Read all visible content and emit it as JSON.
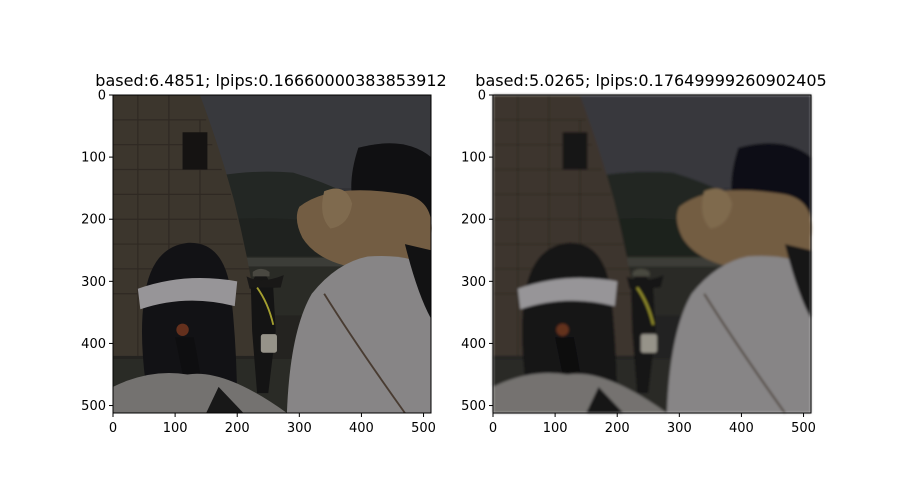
{
  "chart_data": [
    {
      "type": "image",
      "title": "based:6.4851; lpips:0.16660000383853912",
      "xlim": [
        0,
        512
      ],
      "ylim": [
        512,
        0
      ],
      "xticks": [
        0,
        100,
        200,
        300,
        400,
        500
      ],
      "yticks": [
        0,
        100,
        200,
        300,
        400,
        500
      ],
      "xlabel": "",
      "ylabel": "",
      "blurred": false
    },
    {
      "type": "image",
      "title": "based:5.0265; lpips:0.17649999260902405",
      "xlim": [
        0,
        512
      ],
      "ylim": [
        512,
        0
      ],
      "xticks": [
        0,
        100,
        200,
        300,
        400,
        500
      ],
      "yticks": [
        0,
        100,
        200,
        300,
        400,
        500
      ],
      "xlabel": "",
      "ylabel": "",
      "blurred": true
    }
  ]
}
